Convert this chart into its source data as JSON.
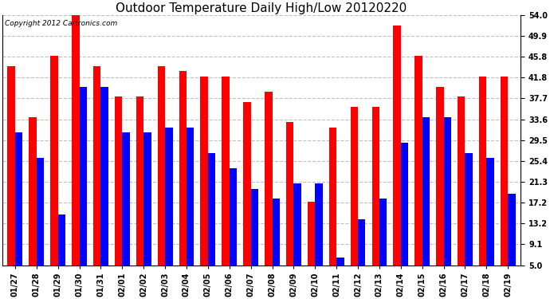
{
  "title": "Outdoor Temperature Daily High/Low 20120220",
  "copyright": "Copyright 2012 Cartronics.com",
  "dates": [
    "01/27",
    "01/28",
    "01/29",
    "01/30",
    "01/31",
    "02/01",
    "02/02",
    "02/03",
    "02/04",
    "02/05",
    "02/06",
    "02/07",
    "02/08",
    "02/09",
    "02/10",
    "02/11",
    "02/12",
    "02/13",
    "02/14",
    "02/15",
    "02/16",
    "02/17",
    "02/18",
    "02/19"
  ],
  "highs": [
    44.0,
    34.0,
    46.0,
    54.0,
    44.0,
    38.0,
    38.0,
    44.0,
    43.0,
    42.0,
    42.0,
    37.0,
    39.0,
    33.0,
    17.5,
    32.0,
    36.0,
    36.0,
    52.0,
    46.0,
    40.0,
    38.0,
    42.0,
    42.0
  ],
  "lows": [
    31.0,
    26.0,
    15.0,
    40.0,
    40.0,
    31.0,
    31.0,
    32.0,
    32.0,
    27.0,
    24.0,
    20.0,
    18.0,
    21.0,
    21.0,
    6.5,
    14.0,
    18.0,
    29.0,
    34.0,
    34.0,
    27.0,
    26.0,
    19.0
  ],
  "yticks": [
    5.0,
    9.1,
    13.2,
    17.2,
    21.3,
    25.4,
    29.5,
    33.6,
    37.7,
    41.8,
    45.8,
    49.9,
    54.0
  ],
  "ymin": 5.0,
  "ymax": 54.0,
  "bar_color_high": "#FF0000",
  "bar_color_low": "#0000FF",
  "bg_color": "#FFFFFF",
  "plot_bg_color": "#FFFFFF",
  "grid_color": "#C0C0C0",
  "title_fontsize": 11,
  "copyright_fontsize": 6.5,
  "tick_fontsize": 7,
  "bar_width": 0.35
}
